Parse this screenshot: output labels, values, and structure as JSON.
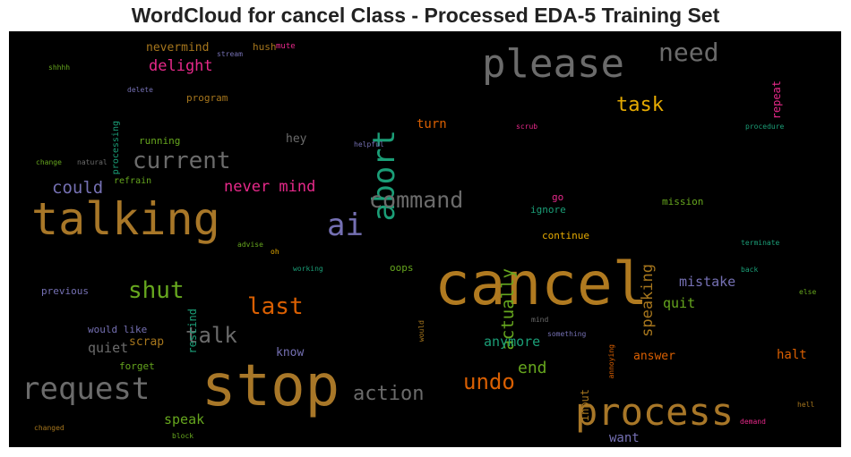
{
  "title": "WordCloud for cancel Class - Processed EDA-5 Training Set",
  "chart_data": {
    "type": "wordcloud",
    "title": "WordCloud for cancel Class - Processed EDA-5 Training Set",
    "background": "#000000",
    "words": [
      {
        "text": "cancel",
        "color": "#b07a20"
      },
      {
        "text": "stop",
        "color": "#a87728"
      },
      {
        "text": "talking",
        "color": "#a87728"
      },
      {
        "text": "please",
        "color": "#6b6b6b"
      },
      {
        "text": "process",
        "color": "#a87728"
      },
      {
        "text": "request",
        "color": "#6b6b6b"
      },
      {
        "text": "abort",
        "color": "#1b9e77"
      },
      {
        "text": "ai",
        "color": "#7570b3"
      },
      {
        "text": "current",
        "color": "#6b6b6b"
      },
      {
        "text": "command",
        "color": "#6b6b6b"
      },
      {
        "text": "shut",
        "color": "#66a61e"
      },
      {
        "text": "last",
        "color": "#d95f02"
      },
      {
        "text": "need",
        "color": "#6b6b6b"
      },
      {
        "text": "undo",
        "color": "#d95f02"
      },
      {
        "text": "talk",
        "color": "#6b6b6b"
      },
      {
        "text": "actually",
        "color": "#66a61e"
      },
      {
        "text": "action",
        "color": "#6b6b6b"
      },
      {
        "text": "task",
        "color": "#e6ab02"
      },
      {
        "text": "could",
        "color": "#7570b3"
      },
      {
        "text": "delight",
        "color": "#e7298a"
      },
      {
        "text": "never mind",
        "color": "#e7298a"
      },
      {
        "text": "speaking",
        "color": "#a6761d"
      },
      {
        "text": "end",
        "color": "#66a61e"
      },
      {
        "text": "anymore",
        "color": "#1b9e77"
      },
      {
        "text": "mistake",
        "color": "#7570b3"
      },
      {
        "text": "quit",
        "color": "#66a61e"
      },
      {
        "text": "speak",
        "color": "#66a61e"
      },
      {
        "text": "want",
        "color": "#7570b3"
      },
      {
        "text": "halt",
        "color": "#d95f02"
      },
      {
        "text": "answer",
        "color": "#d95f02"
      },
      {
        "text": "quiet",
        "color": "#6b6b6b"
      },
      {
        "text": "scrap",
        "color": "#a6761d"
      },
      {
        "text": "hey",
        "color": "#6b6b6b"
      },
      {
        "text": "turn",
        "color": "#d95f02"
      },
      {
        "text": "know",
        "color": "#7570b3"
      },
      {
        "text": "nevermind",
        "color": "#a6761d"
      },
      {
        "text": "rescind",
        "color": "#1b9e77"
      },
      {
        "text": "input",
        "color": "#a6761d"
      },
      {
        "text": "repeat",
        "color": "#e7298a"
      },
      {
        "text": "processing",
        "color": "#1b9e77"
      },
      {
        "text": "program",
        "color": "#a6761d"
      },
      {
        "text": "running",
        "color": "#66a61e"
      },
      {
        "text": "refrain",
        "color": "#66a61e"
      },
      {
        "text": "oops",
        "color": "#66a61e"
      },
      {
        "text": "go",
        "color": "#e7298a"
      },
      {
        "text": "ignore",
        "color": "#1b9e77"
      },
      {
        "text": "continue",
        "color": "#e6ab02"
      },
      {
        "text": "mission",
        "color": "#66a61e"
      },
      {
        "text": "previous",
        "color": "#7570b3"
      },
      {
        "text": "would like",
        "color": "#7570b3"
      },
      {
        "text": "forget",
        "color": "#66a61e"
      },
      {
        "text": "hush",
        "color": "#a6761d"
      },
      {
        "text": "mute",
        "color": "#e7298a"
      },
      {
        "text": "stream",
        "color": "#7570b3"
      },
      {
        "text": "shhhh",
        "color": "#66a61e"
      },
      {
        "text": "delete",
        "color": "#7570b3"
      },
      {
        "text": "change",
        "color": "#66a61e"
      },
      {
        "text": "natural",
        "color": "#6b6b6b"
      },
      {
        "text": "helpful",
        "color": "#7570b3"
      },
      {
        "text": "scrub",
        "color": "#e7298a"
      },
      {
        "text": "procedure",
        "color": "#1b9e77"
      },
      {
        "text": "terminate",
        "color": "#1b9e77"
      },
      {
        "text": "back",
        "color": "#1b9e77"
      },
      {
        "text": "else",
        "color": "#66a61e"
      },
      {
        "text": "advise",
        "color": "#66a61e"
      },
      {
        "text": "oh",
        "color": "#e6ab02"
      },
      {
        "text": "working",
        "color": "#1b9e77"
      },
      {
        "text": "would",
        "color": "#a6761d"
      },
      {
        "text": "mind",
        "color": "#6b6b6b"
      },
      {
        "text": "something",
        "color": "#7570b3"
      },
      {
        "text": "annoying",
        "color": "#d95f02"
      },
      {
        "text": "changed",
        "color": "#a6761d"
      },
      {
        "text": "block",
        "color": "#66a61e"
      },
      {
        "text": "demand",
        "color": "#e7298a"
      },
      {
        "text": "hell",
        "color": "#a6761d"
      }
    ]
  }
}
